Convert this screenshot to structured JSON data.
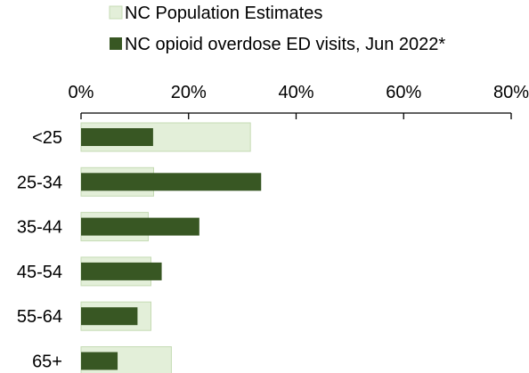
{
  "chart_data": {
    "type": "bar",
    "orientation": "horizontal",
    "categories": [
      "<25",
      "25-34",
      "35-44",
      "45-54",
      "55-64",
      "65+"
    ],
    "series": [
      {
        "name": "NC Population Estimates",
        "values": [
          31.5,
          13.5,
          12.5,
          13,
          13,
          16.8
        ],
        "color": "#e3efd9",
        "border": "#c5dbb4"
      },
      {
        "name": "NC opioid overdose ED visits, Jun 2022*",
        "values": [
          13.4,
          33.5,
          22,
          15,
          10.5,
          6.8
        ],
        "color": "#385723"
      }
    ],
    "xlim": [
      0,
      80
    ],
    "xticks": [
      0,
      20,
      40,
      60,
      80
    ],
    "xtick_labels": [
      "0%",
      "20%",
      "40%",
      "60%",
      "80%"
    ],
    "x_axis_position": "top",
    "legend_position": "top-center",
    "grid": false,
    "title": "",
    "xlabel": "",
    "ylabel": ""
  }
}
